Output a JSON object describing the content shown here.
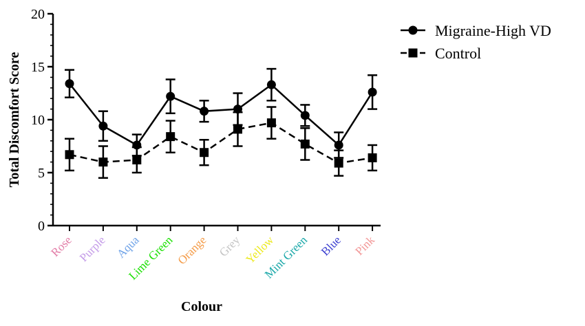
{
  "chart_data": {
    "type": "line",
    "xlabel": "Colour",
    "ylabel": "Total Discomfort Score",
    "ylim": [
      0,
      20
    ],
    "yticks": [
      "0",
      "5",
      "10",
      "15",
      "20"
    ],
    "grid": false,
    "legend_position": "top-right",
    "categories": [
      "Rose",
      "Purple",
      "Aqua",
      "Lime Green",
      "Orange",
      "Grey",
      "Yellow",
      "Mint Green",
      "Blue",
      "Pink"
    ],
    "category_colors": [
      "#e27ba6",
      "#c49be8",
      "#6fa3e8",
      "#19e000",
      "#f49b47",
      "#c4c4c4",
      "#ece91c",
      "#18a7a8",
      "#3a3ed0",
      "#f29696"
    ],
    "series": [
      {
        "name": "Migraine-High VD",
        "marker": "circle",
        "line_style": "solid",
        "color": "#000000",
        "values": [
          13.4,
          9.4,
          7.6,
          12.2,
          10.8,
          11.0,
          13.3,
          10.4,
          7.6,
          12.6
        ],
        "error": [
          1.3,
          1.4,
          1.0,
          1.6,
          1.0,
          1.5,
          1.5,
          1.0,
          1.2,
          1.6
        ]
      },
      {
        "name": "Control",
        "marker": "square",
        "line_style": "dashed",
        "color": "#000000",
        "values": [
          6.7,
          6.0,
          6.2,
          8.4,
          6.9,
          9.1,
          9.7,
          7.7,
          5.9,
          6.4
        ],
        "error": [
          1.5,
          1.5,
          1.2,
          1.5,
          1.2,
          1.6,
          1.5,
          1.5,
          1.2,
          1.2
        ]
      }
    ]
  }
}
